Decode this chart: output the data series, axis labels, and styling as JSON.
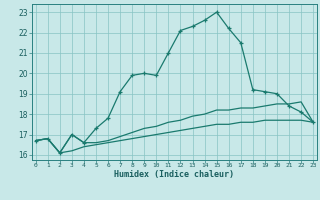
{
  "xlabel": "Humidex (Indice chaleur)",
  "x_values": [
    0,
    1,
    2,
    3,
    4,
    5,
    6,
    7,
    8,
    9,
    10,
    11,
    12,
    13,
    14,
    15,
    16,
    17,
    18,
    19,
    20,
    21,
    22,
    23
  ],
  "line1_y": [
    16.7,
    16.8,
    16.1,
    17.0,
    16.6,
    17.3,
    17.8,
    19.1,
    19.9,
    20.0,
    19.9,
    21.0,
    22.1,
    22.3,
    22.6,
    23.0,
    22.2,
    21.5,
    19.2,
    19.1,
    19.0,
    18.4,
    18.1,
    17.6
  ],
  "line2_y": [
    16.7,
    16.8,
    16.1,
    17.0,
    16.6,
    16.6,
    16.7,
    16.9,
    17.1,
    17.3,
    17.4,
    17.6,
    17.7,
    17.9,
    18.0,
    18.2,
    18.2,
    18.3,
    18.3,
    18.4,
    18.5,
    18.5,
    18.6,
    17.6
  ],
  "line3_y": [
    16.7,
    16.8,
    16.1,
    16.2,
    16.4,
    16.5,
    16.6,
    16.7,
    16.8,
    16.9,
    17.0,
    17.1,
    17.2,
    17.3,
    17.4,
    17.5,
    17.5,
    17.6,
    17.6,
    17.7,
    17.7,
    17.7,
    17.7,
    17.6
  ],
  "ylim": [
    15.75,
    23.4
  ],
  "yticks": [
    16,
    17,
    18,
    19,
    20,
    21,
    22,
    23
  ],
  "xlim": [
    -0.3,
    23.3
  ],
  "line_color": "#1a7a6e",
  "bg_color": "#c8e8e8",
  "grid_color": "#88c4c4",
  "text_color": "#1a5f5f",
  "spine_color": "#2a8080"
}
